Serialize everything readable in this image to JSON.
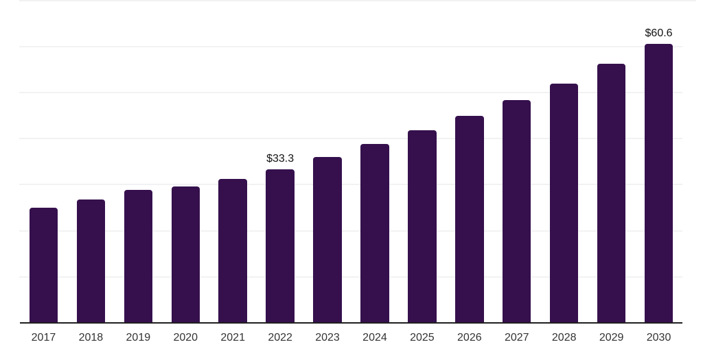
{
  "chart_data": {
    "type": "bar",
    "categories": [
      "2017",
      "2018",
      "2019",
      "2020",
      "2021",
      "2022",
      "2023",
      "2024",
      "2025",
      "2026",
      "2027",
      "2028",
      "2029",
      "2030"
    ],
    "values": [
      25.0,
      26.8,
      28.8,
      29.6,
      31.3,
      33.3,
      36.0,
      38.8,
      41.8,
      44.9,
      48.3,
      52.0,
      56.2,
      60.6
    ],
    "point_labels": [
      "",
      "",
      "",
      "",
      "",
      "$33.3",
      "",
      "",
      "",
      "",
      "",
      "",
      "",
      "$60.6"
    ],
    "ylim": [
      0,
      70
    ],
    "gridline_values": [
      10,
      20,
      30,
      40,
      50,
      60,
      70
    ],
    "grid": true,
    "legend": false,
    "colors": {
      "bar": "#35104D",
      "gridline": "#f2f2f4",
      "axis_line": "#1f1f1f",
      "tick_label": "#333333",
      "data_label": "#111111"
    }
  }
}
